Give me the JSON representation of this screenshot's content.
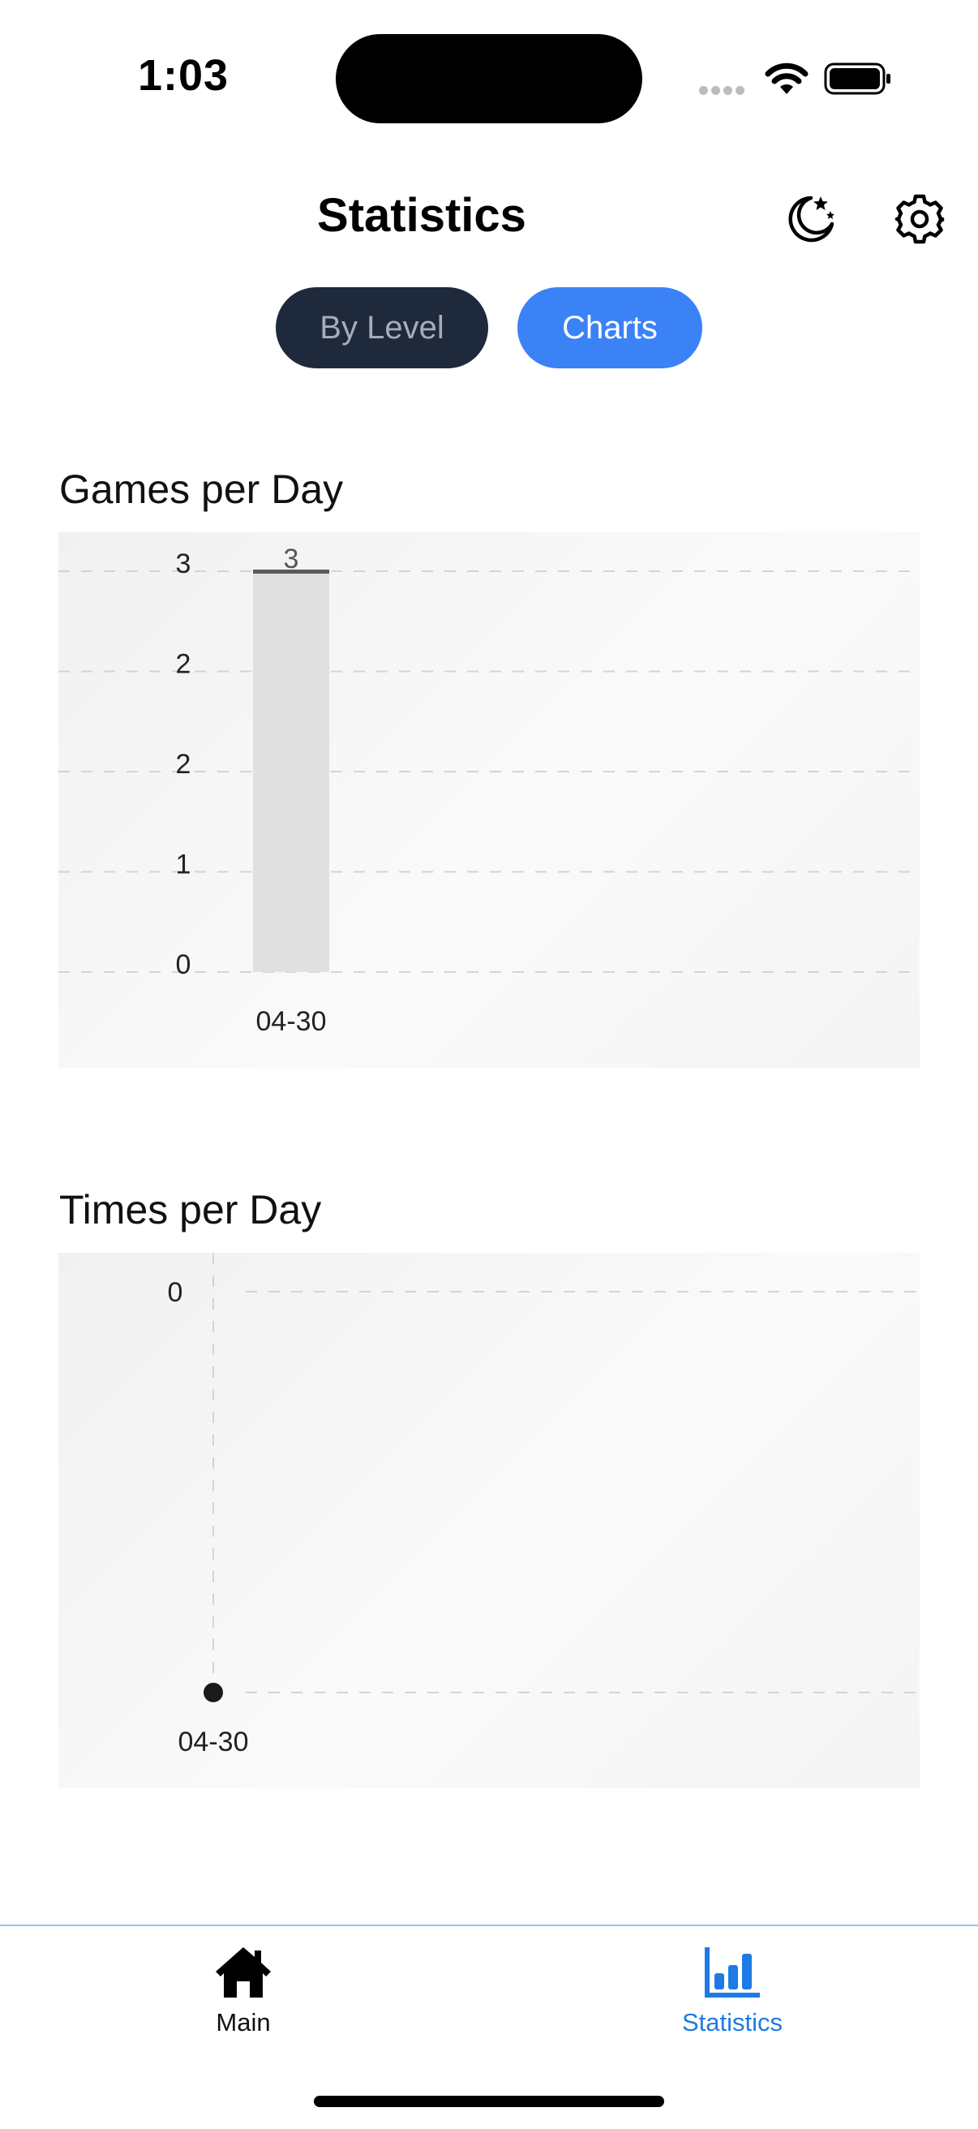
{
  "status_bar": {
    "time": "1:03"
  },
  "header": {
    "title": "Statistics",
    "icons": [
      "moon-stars-icon",
      "gear-icon"
    ]
  },
  "segments": {
    "by_level": "By Level",
    "charts": "Charts",
    "selected": "Charts"
  },
  "colors": {
    "segment_inactive_bg": "#1e293b",
    "segment_active_bg": "#3b82f6",
    "tab_active": "#1e7be6",
    "bar_fill": "#e0e0e0",
    "gridline": "#d4d4d4"
  },
  "sections": {
    "games_title": "Games per Day",
    "times_title": "Times per Day"
  },
  "chart_data": [
    {
      "type": "bar",
      "title": "Games per Day",
      "categories": [
        "04-30"
      ],
      "values": [
        3
      ],
      "data_labels": [
        "3"
      ],
      "y_tick_labels": [
        "3",
        "2",
        "2",
        "1",
        "0"
      ],
      "ylim": [
        0,
        3
      ],
      "grid": true
    },
    {
      "type": "line",
      "title": "Times per Day",
      "x": [
        "04-30"
      ],
      "y": [
        0
      ],
      "y_tick_labels": [
        "0"
      ],
      "grid": true
    }
  ],
  "tabbar": {
    "main_label": "Main",
    "stats_label": "Statistics",
    "active": "Statistics"
  }
}
